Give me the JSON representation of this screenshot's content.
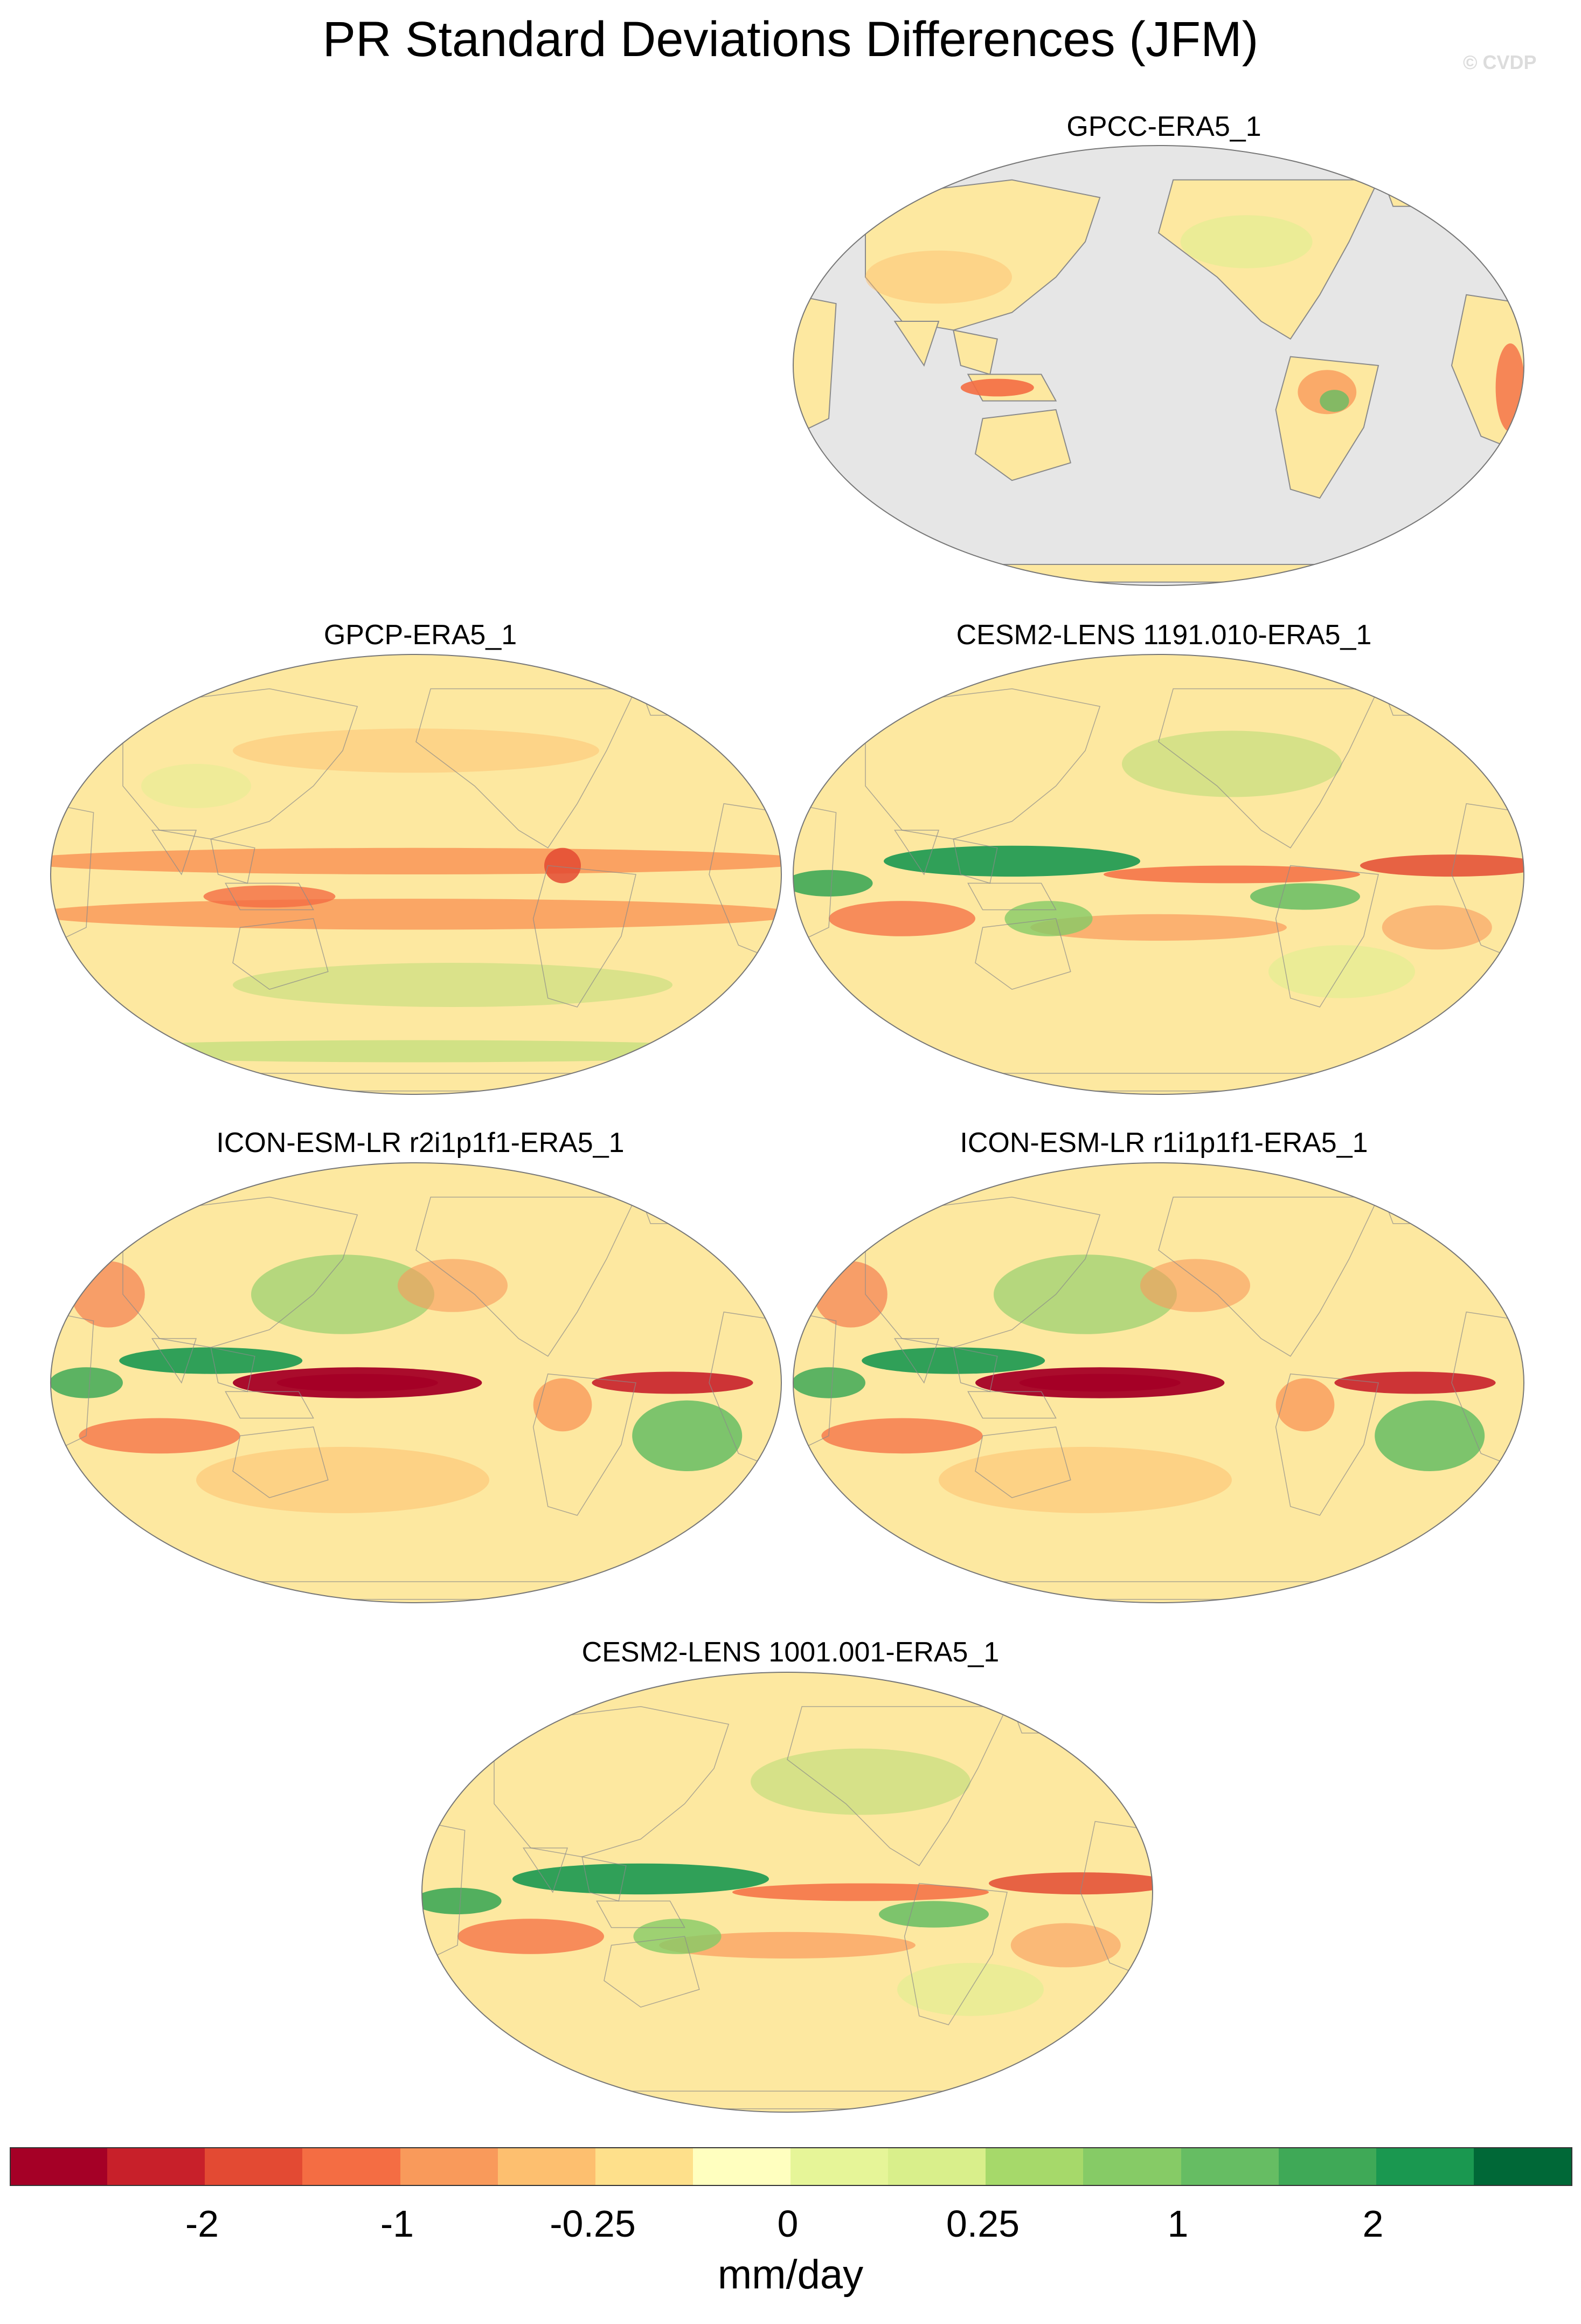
{
  "figure": {
    "title": "PR Standard Deviations Differences (JFM)",
    "watermark": "© CVDP"
  },
  "panels": [
    {
      "title": "GPCC-ERA5_1",
      "style": "land-only"
    },
    {
      "title": "GPCP-ERA5_1",
      "style": "gpcp"
    },
    {
      "title": "CESM2-LENS 1191.010-ERA5_1",
      "style": "cesm-a"
    },
    {
      "title": "ICON-ESM-LR r2i1p1f1-ERA5_1",
      "style": "icon"
    },
    {
      "title": "ICON-ESM-LR r1i1p1f1-ERA5_1",
      "style": "icon"
    },
    {
      "title": "CESM2-LENS 1001.001-ERA5_1",
      "style": "cesm-b"
    }
  ],
  "colorbar": {
    "units": "mm/day",
    "colors": [
      "#a50026",
      "#c8202a",
      "#e34a33",
      "#f46d43",
      "#f99a5b",
      "#fdbf6f",
      "#fee08b",
      "#ffffbf",
      "#e6f598",
      "#d9ef8b",
      "#a6d96a",
      "#86cb66",
      "#66bd63",
      "#3fa957",
      "#1a9850",
      "#006837"
    ],
    "tick_labels": [
      "-2",
      "-1",
      "-0.25",
      "0",
      "0.25",
      "1",
      "2"
    ]
  },
  "colors": {
    "missing_fill": "#e6e6e6",
    "coast": "#8a8a8a",
    "neutral": "#fde8a0"
  }
}
